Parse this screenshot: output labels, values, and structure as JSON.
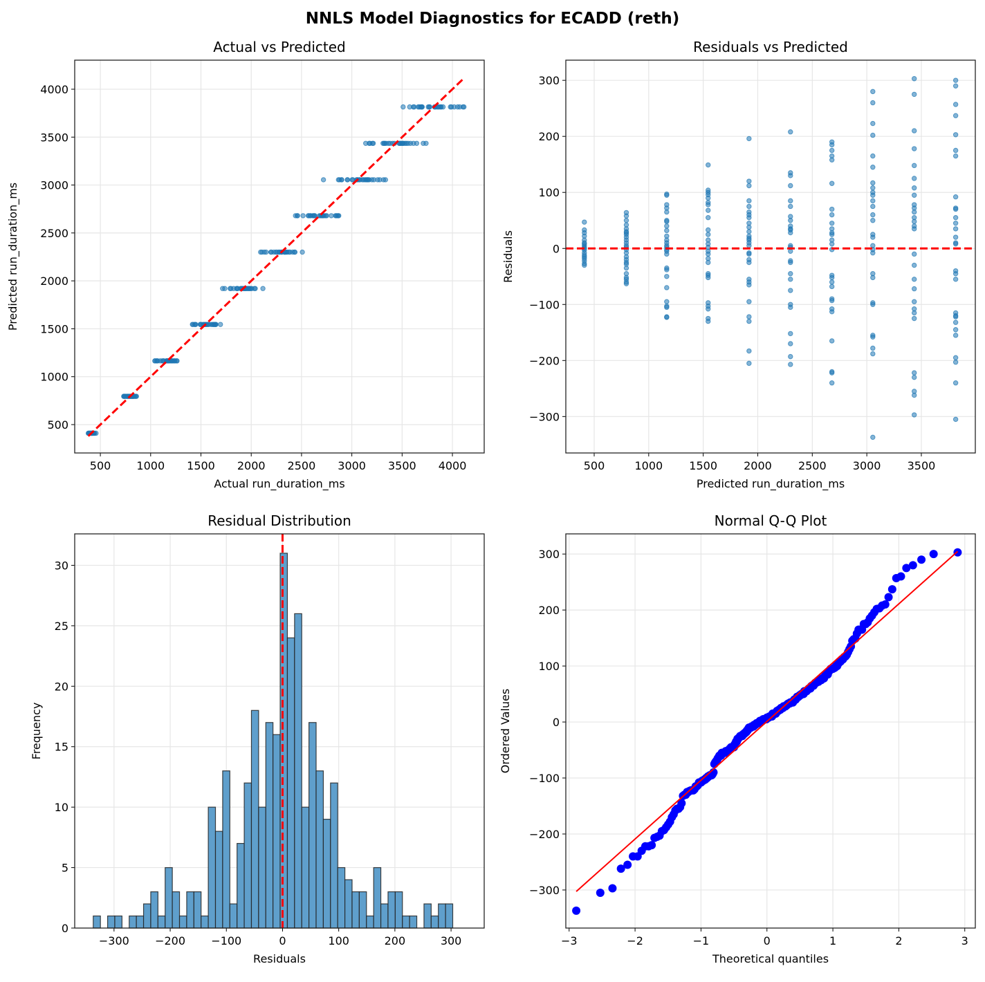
{
  "title": "NNLS Model Diagnostics for ECADD (reth)",
  "colors": {
    "points": "#1f77b4",
    "ref_line": "#ff0000",
    "qq_points": "#0000ff",
    "grid": "#e6e6e6"
  },
  "chart_data": [
    {
      "id": "actual_vs_predicted",
      "type": "scatter",
      "title": "Actual vs Predicted",
      "xlabel": "Actual run_duration_ms",
      "ylabel": "Predicted run_duration_ms",
      "xlim": [
        245,
        4316
      ],
      "ylim": [
        204,
        4303
      ],
      "xticks": [
        500,
        1000,
        1500,
        2000,
        2500,
        3000,
        3500,
        4000
      ],
      "yticks": [
        500,
        1000,
        1500,
        2000,
        2500,
        3000,
        3500,
        4000
      ],
      "xtick_labels": [
        "500",
        "1000",
        "1500",
        "2000",
        "2500",
        "3000",
        "3500",
        "4000"
      ],
      "ytick_labels": [
        "500",
        "1000",
        "1500",
        "2000",
        "2500",
        "3000",
        "3500",
        "4000"
      ],
      "reference_line": {
        "from": [
          380,
          380
        ],
        "to": [
          4110,
          4110
        ],
        "style": "dashed"
      },
      "grid": true,
      "note": "points: x = predicted + residual, y = predicted (from groups below)"
    },
    {
      "id": "residuals_vs_predicted",
      "type": "scatter",
      "title": "Residuals vs Predicted",
      "xlabel": "Predicted run_duration_ms",
      "ylabel": "Residuals",
      "xlim": [
        240,
        3995
      ],
      "ylim": [
        -365,
        336
      ],
      "xticks": [
        500,
        1000,
        1500,
        2000,
        2500,
        3000,
        3500
      ],
      "yticks": [
        -300,
        -200,
        -100,
        0,
        100,
        200,
        300
      ],
      "xtick_labels": [
        "500",
        "1000",
        "1500",
        "2000",
        "2500",
        "3000",
        "3500"
      ],
      "ytick_labels": [
        "−300",
        "−200",
        "−100",
        "0",
        "100",
        "200",
        "300"
      ],
      "reference_line": {
        "y": 0,
        "style": "dashed"
      },
      "grid": true,
      "groups": [
        {
          "predicted": 410,
          "residuals": [
            47,
            33,
            28,
            22,
            15,
            10,
            8,
            5,
            2,
            0,
            -3,
            -8,
            -12,
            -15,
            -18,
            -22,
            -27,
            -30
          ]
        },
        {
          "predicted": 795,
          "residuals": [
            64,
            58,
            50,
            42,
            35,
            30,
            28,
            25,
            20,
            15,
            10,
            5,
            2,
            -2,
            -8,
            -15,
            -20,
            -25,
            -28,
            -35,
            -45,
            -52,
            -55,
            -60,
            -63
          ]
        },
        {
          "predicted": 1165,
          "residuals": [
            97,
            95,
            78,
            72,
            65,
            50,
            48,
            40,
            32,
            22,
            15,
            10,
            5,
            2,
            -2,
            -5,
            -10,
            -35,
            -38,
            -50,
            -70,
            -95,
            -103,
            -105,
            -122,
            -123
          ]
        },
        {
          "predicted": 1545,
          "residuals": [
            149,
            104,
            100,
            96,
            90,
            82,
            78,
            68,
            55,
            33,
            25,
            15,
            8,
            2,
            -5,
            -10,
            -18,
            -25,
            -45,
            -48,
            -52,
            -97,
            -103,
            -108,
            -125,
            -130
          ]
        },
        {
          "predicted": 1920,
          "residuals": [
            196,
            120,
            112,
            85,
            75,
            65,
            60,
            55,
            45,
            38,
            30,
            22,
            18,
            15,
            10,
            5,
            -8,
            -10,
            -20,
            -25,
            -55,
            -60,
            -65,
            -95,
            -122,
            -130,
            -183,
            -205
          ]
        },
        {
          "predicted": 2300,
          "residuals": [
            208,
            135,
            130,
            112,
            85,
            75,
            57,
            50,
            40,
            35,
            33,
            28,
            5,
            2,
            -5,
            -22,
            -25,
            -45,
            -55,
            -75,
            -100,
            -105,
            -152,
            -170,
            -193,
            -207
          ]
        },
        {
          "predicted": 2680,
          "residuals": [
            190,
            185,
            175,
            165,
            158,
            116,
            70,
            60,
            45,
            35,
            28,
            25,
            15,
            8,
            -2,
            -48,
            -52,
            -60,
            -68,
            -90,
            -93,
            -108,
            -113,
            -165,
            -220,
            -222,
            -240
          ]
        },
        {
          "predicted": 3055,
          "residuals": [
            280,
            260,
            223,
            202,
            165,
            145,
            117,
            108,
            100,
            95,
            85,
            75,
            60,
            50,
            25,
            20,
            5,
            -2,
            -8,
            -45,
            -52,
            -97,
            -100,
            -155,
            -158,
            -178,
            -188,
            -337
          ]
        },
        {
          "predicted": 3435,
          "residuals": [
            303,
            275,
            210,
            178,
            148,
            125,
            108,
            95,
            78,
            72,
            65,
            55,
            48,
            40,
            35,
            -10,
            -30,
            -55,
            -72,
            -95,
            -108,
            -115,
            -125,
            -222,
            -230,
            -255,
            -262,
            -297
          ]
        },
        {
          "predicted": 3815,
          "residuals": [
            300,
            290,
            257,
            237,
            203,
            175,
            165,
            92,
            72,
            70,
            55,
            45,
            35,
            20,
            10,
            8,
            -40,
            -45,
            -55,
            -115,
            -120,
            -122,
            -132,
            -145,
            -155,
            -195,
            -203,
            -240,
            -305
          ]
        }
      ]
    },
    {
      "id": "residual_distribution",
      "type": "bar",
      "title": "Residual Distribution",
      "xlabel": "Residuals",
      "ylabel": "Frequency",
      "xlim": [
        -370,
        359
      ],
      "ylim": [
        0,
        32.6
      ],
      "bin_range": [
        -337,
        303
      ],
      "counts": [
        1,
        0,
        1,
        1,
        0,
        1,
        1,
        2,
        3,
        1,
        5,
        3,
        1,
        3,
        3,
        1,
        10,
        8,
        13,
        2,
        7,
        12,
        18,
        10,
        17,
        16,
        31,
        24,
        26,
        10,
        17,
        13,
        9,
        12,
        5,
        4,
        3,
        3,
        1,
        5,
        2,
        3,
        3,
        1,
        1,
        0,
        2,
        1,
        2,
        2
      ],
      "xticks": [
        -300,
        -200,
        -100,
        0,
        100,
        200,
        300
      ],
      "xtick_labels": [
        "−300",
        "−200",
        "−100",
        "0",
        "100",
        "200",
        "300"
      ],
      "yticks": [
        0,
        5,
        10,
        15,
        20,
        25,
        30
      ],
      "ytick_labels": [
        "0",
        "5",
        "10",
        "15",
        "20",
        "25",
        "30"
      ],
      "reference_line": {
        "x": 0,
        "style": "dashed"
      },
      "grid": true
    },
    {
      "id": "normal_qq",
      "type": "scatter",
      "title": "Normal Q-Q Plot",
      "xlabel": "Theoretical quantiles",
      "ylabel": "Ordered Values",
      "xlim": [
        -3.05,
        3.16
      ],
      "ylim": [
        -368,
        336
      ],
      "xticks": [
        -3,
        -2,
        -1,
        0,
        1,
        2,
        3
      ],
      "xtick_labels": [
        "−3",
        "−2",
        "−1",
        "0",
        "1",
        "2",
        "3"
      ],
      "yticks": [
        -300,
        -200,
        -100,
        0,
        100,
        200,
        300
      ],
      "ytick_labels": [
        "−300",
        "−200",
        "−100",
        "0",
        "100",
        "200",
        "300"
      ],
      "fit_line": {
        "slope": 105,
        "intercept": 1
      },
      "grid": true
    }
  ]
}
